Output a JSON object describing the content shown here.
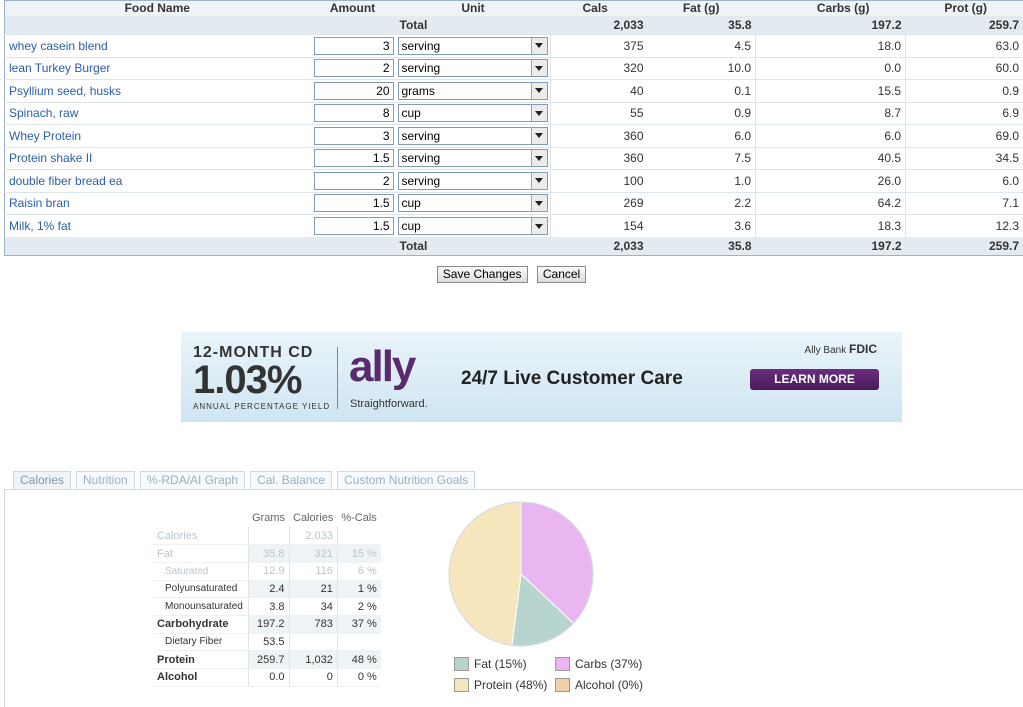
{
  "headers": {
    "food_name": "Food Name",
    "amount": "Amount",
    "unit": "Unit",
    "cals": "Cals",
    "fat": "Fat (g)",
    "carbs": "Carbs (g)",
    "prot": "Prot (g)"
  },
  "totals": {
    "label": "Total",
    "cals": "2,033",
    "fat": "35.8",
    "carbs": "197.2",
    "prot": "259.7"
  },
  "foods": [
    {
      "name": "whey casein blend",
      "amount": "3",
      "unit": "serving",
      "cals": "375",
      "fat": "4.5",
      "carbs": "18.0",
      "prot": "63.0"
    },
    {
      "name": "lean Turkey Burger",
      "amount": "2",
      "unit": "serving",
      "cals": "320",
      "fat": "10.0",
      "carbs": "0.0",
      "prot": "60.0"
    },
    {
      "name": "Psyllium seed, husks",
      "amount": "20",
      "unit": "grams",
      "cals": "40",
      "fat": "0.1",
      "carbs": "15.5",
      "prot": "0.9"
    },
    {
      "name": "Spinach, raw",
      "amount": "8",
      "unit": "cup",
      "cals": "55",
      "fat": "0.9",
      "carbs": "8.7",
      "prot": "6.9"
    },
    {
      "name": "Whey Protein",
      "amount": "3",
      "unit": "serving",
      "cals": "360",
      "fat": "6.0",
      "carbs": "6.0",
      "prot": "69.0"
    },
    {
      "name": "Protein shake II",
      "amount": "1.5",
      "unit": "serving",
      "cals": "360",
      "fat": "7.5",
      "carbs": "40.5",
      "prot": "34.5"
    },
    {
      "name": "double fiber bread ea",
      "amount": "2",
      "unit": "serving",
      "cals": "100",
      "fat": "1.0",
      "carbs": "26.0",
      "prot": "6.0"
    },
    {
      "name": "Raisin bran",
      "amount": "1.5",
      "unit": "cup",
      "cals": "269",
      "fat": "2.2",
      "carbs": "64.2",
      "prot": "7.1"
    },
    {
      "name": "Milk, 1% fat",
      "amount": "1.5",
      "unit": "cup",
      "cals": "154",
      "fat": "3.6",
      "carbs": "18.3",
      "prot": "12.3"
    }
  ],
  "buttons": {
    "save": "Save Changes",
    "cancel": "Cancel"
  },
  "ad": {
    "cd_label": "12-MONTH CD",
    "rate": "1.03%",
    "apy": "ANNUAL PERCENTAGE YIELD",
    "brand": "ally",
    "tagline": "Straightforward.",
    "care": "24/7 Live Customer Care",
    "bank": "Ally Bank",
    "fdic": "FDIC",
    "cta": "LEARN MORE",
    "colors": {
      "brand": "#5a2a6c",
      "cta": "#4a1a5c"
    }
  },
  "tabs": [
    "Calories",
    "Nutrition",
    "%-RDA/AI Graph",
    "Cal. Balance",
    "Custom Nutrition Goals"
  ],
  "nutrition": {
    "headers": [
      "Grams",
      "Calories",
      "%-Cals"
    ],
    "rows": [
      {
        "label": "Calories",
        "grams": "",
        "calories": "2,033",
        "pct": ""
      },
      {
        "label": "Fat",
        "grams": "35.8",
        "calories": "321",
        "pct": "15 %"
      },
      {
        "label": "Saturated",
        "grams": "12.9",
        "calories": "116",
        "pct": "6 %"
      },
      {
        "label": "Polyunsaturated",
        "grams": "2.4",
        "calories": "21",
        "pct": "1 %"
      },
      {
        "label": "Monounsaturated",
        "grams": "3.8",
        "calories": "34",
        "pct": "2 %"
      },
      {
        "label": "Carbohydrate",
        "grams": "197.2",
        "calories": "783",
        "pct": "37 %"
      },
      {
        "label": "Dietary Fiber",
        "grams": "53.5",
        "calories": "",
        "pct": ""
      },
      {
        "label": "Protein",
        "grams": "259.7",
        "calories": "1,032",
        "pct": "48 %"
      },
      {
        "label": "Alcohol",
        "grams": "0.0",
        "calories": "0",
        "pct": "0 %"
      }
    ]
  },
  "chart_data": {
    "type": "pie",
    "series": [
      {
        "name": "Fat",
        "label": "Fat  (15%)",
        "value": 15,
        "color": "#b7d4cf"
      },
      {
        "name": "Carbs",
        "label": "Carbs  (37%)",
        "value": 37,
        "color": "#e9b6f2"
      },
      {
        "name": "Protein",
        "label": "Protein  (48%)",
        "value": 48,
        "color": "#f5e6bd"
      },
      {
        "name": "Alcohol",
        "label": "Alcohol  (0%)",
        "value": 0,
        "color": "#f2cfa8"
      }
    ],
    "legend": "bottom"
  }
}
